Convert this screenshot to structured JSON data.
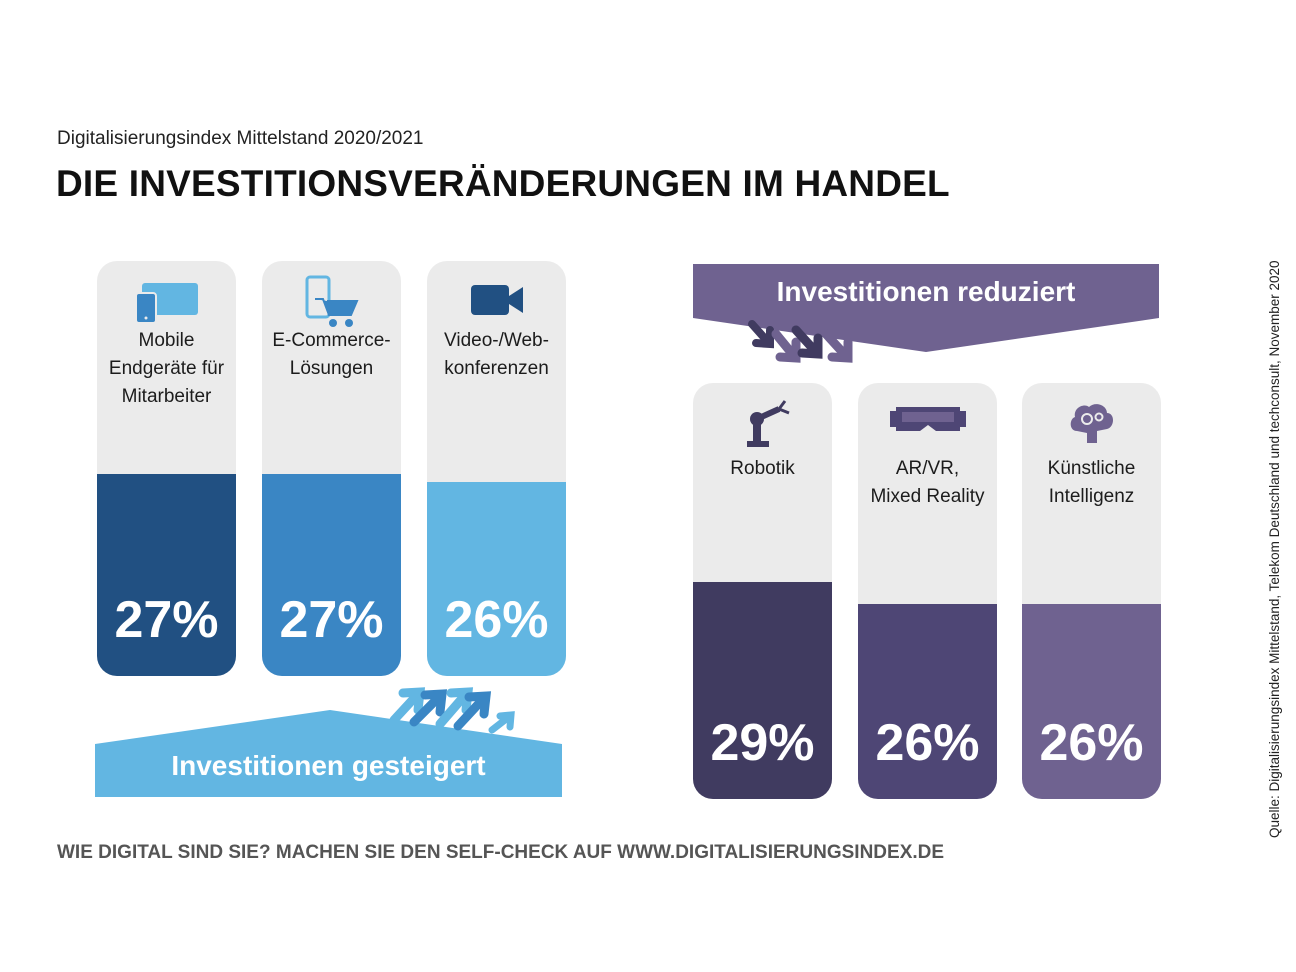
{
  "subtitle": "Digitalisierungsindex Mittelstand 2020/2021",
  "title": "DIE INVESTITIONSVERÄNDERUNGEN IM HANDEL",
  "footer": "WIE DIGITAL SIND SIE? MACHEN SIE DEN SELF-CHECK AUF WWW.DIGITALISIERUNGSINDEX.DE",
  "source": "Quelle: Digitalisierungsindex Mittelstand, Telekom Deutschland und techconsult, November 2020",
  "colors": {
    "increase_dark": "#215082",
    "increase_mid": "#3a86c4",
    "increase_light": "#62b6e2",
    "decrease_dark": "#403b60",
    "decrease_mid": "#4e4675",
    "decrease_light": "#6f6290",
    "card_bg": "#ebebeb"
  },
  "chart_data": [
    {
      "type": "bar",
      "group": "Investitionen gesteigert",
      "categories": [
        "Mobile\nEndgeräte für\nMitarbeiter",
        "E-Commerce-\nLösungen",
        "Video-/Web-\nkonferenzen"
      ],
      "values": [
        27,
        27,
        26
      ],
      "value_labels": [
        "27%",
        "27%",
        "26%"
      ],
      "icons": [
        "mobile-devices-icon",
        "ecommerce-cart-icon",
        "video-camera-icon"
      ]
    },
    {
      "type": "bar",
      "group": "Investitionen reduziert",
      "categories": [
        "Robotik",
        "AR/VR,\nMixed Reality",
        "Künstliche\nIntelligenz"
      ],
      "values": [
        29,
        26,
        26
      ],
      "value_labels": [
        "29%",
        "26%",
        "26%"
      ],
      "icons": [
        "robot-arm-icon",
        "vr-headset-icon",
        "ai-brain-icon"
      ]
    }
  ]
}
